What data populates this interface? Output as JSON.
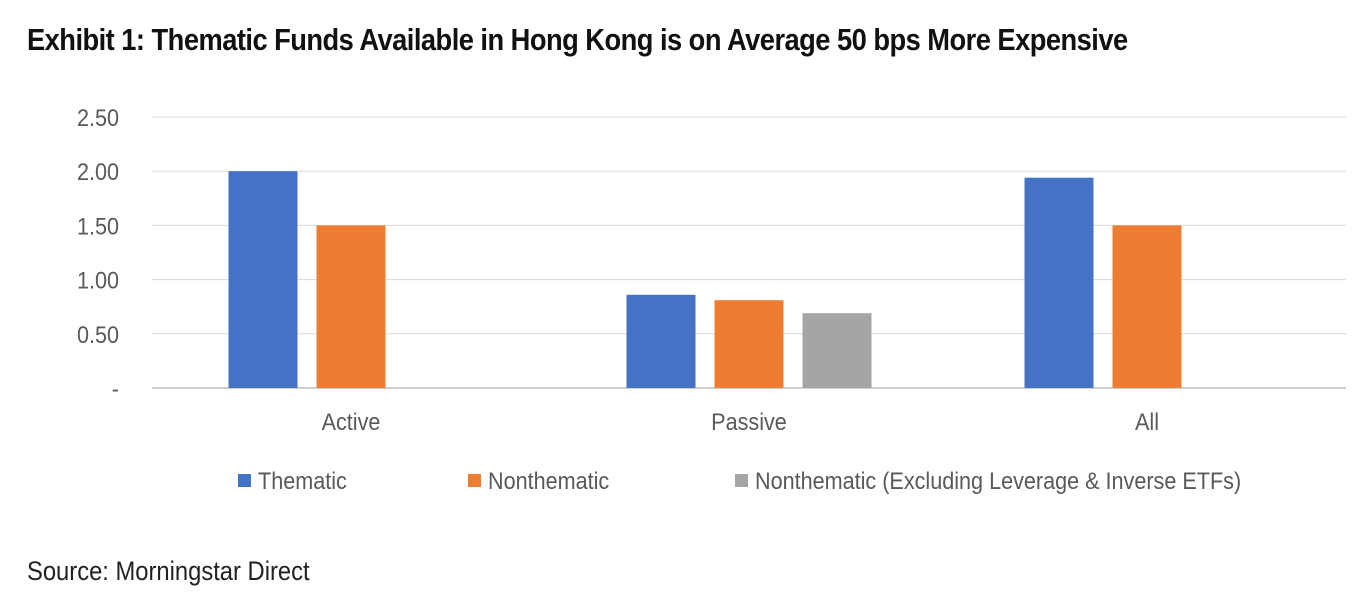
{
  "title": "Exhibit 1: Thematic Funds Available in Hong Kong is on Average 50 bps More Expensive",
  "source": "Source: Morningstar Direct",
  "colors": {
    "thematic": "#4472C4",
    "nonthematic": "#ED7D31",
    "nonthematic_ex": "#A5A5A5",
    "grid": "#D9D9D9",
    "axis_text": "#595959"
  },
  "chart_data": {
    "type": "bar",
    "title": "Exhibit 1: Thematic Funds Available in Hong Kong is on Average 50 bps More Expensive",
    "categories": [
      "Active",
      "Passive",
      "All"
    ],
    "series": [
      {
        "name": "Thematic",
        "values": [
          2.0,
          0.86,
          1.94
        ]
      },
      {
        "name": "Nonthematic",
        "values": [
          1.5,
          0.81,
          1.5
        ]
      },
      {
        "name": "Nonthematic (Excluding Leverage & Inverse ETFs)",
        "values": [
          null,
          0.69,
          null
        ]
      }
    ],
    "yticks": [
      {
        "value": 0,
        "label": "-"
      },
      {
        "value": 0.5,
        "label": "0.50"
      },
      {
        "value": 1.0,
        "label": "1.00"
      },
      {
        "value": 1.5,
        "label": "1.50"
      },
      {
        "value": 2.0,
        "label": "2.00"
      },
      {
        "value": 2.5,
        "label": "2.50"
      }
    ],
    "ylim": [
      0,
      2.5
    ],
    "grid": true,
    "legend": "bottom",
    "xlabel": "",
    "ylabel": ""
  }
}
